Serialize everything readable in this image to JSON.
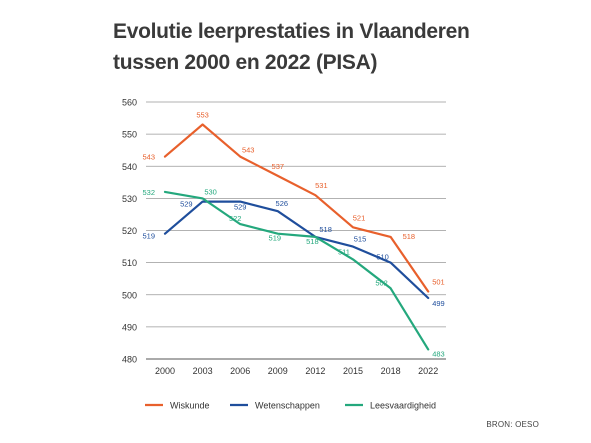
{
  "title_lines": [
    "Evolutie leerprestaties in Vlaanderen",
    "tussen 2000 en 2022 (PISA)"
  ],
  "source": "BRON: OESO",
  "colors": {
    "wiskunde": "#e8602c",
    "wetenschappen": "#1f4e9c",
    "leesvaardigheid": "#24a87d"
  },
  "chart_data": {
    "type": "line",
    "x": [
      "2000",
      "2003",
      "2006",
      "2009",
      "2012",
      "2015",
      "2018",
      "2022"
    ],
    "ylim": [
      480,
      560
    ],
    "yticks": [
      480,
      490,
      500,
      510,
      520,
      530,
      540,
      550,
      560
    ],
    "grid": true,
    "legend_position": "bottom",
    "series": [
      {
        "name": "Wiskunde",
        "color": "#e8602c",
        "values": [
          543,
          553,
          543,
          537,
          531,
          521,
          518,
          501
        ]
      },
      {
        "name": "Wetenschappen",
        "color": "#1f4e9c",
        "values": [
          519,
          529,
          529,
          526,
          518,
          515,
          510,
          499
        ]
      },
      {
        "name": "Leesvaardigheid",
        "color": "#24a87d",
        "values": [
          532,
          530,
          522,
          519,
          518,
          511,
          502,
          483
        ]
      }
    ]
  }
}
